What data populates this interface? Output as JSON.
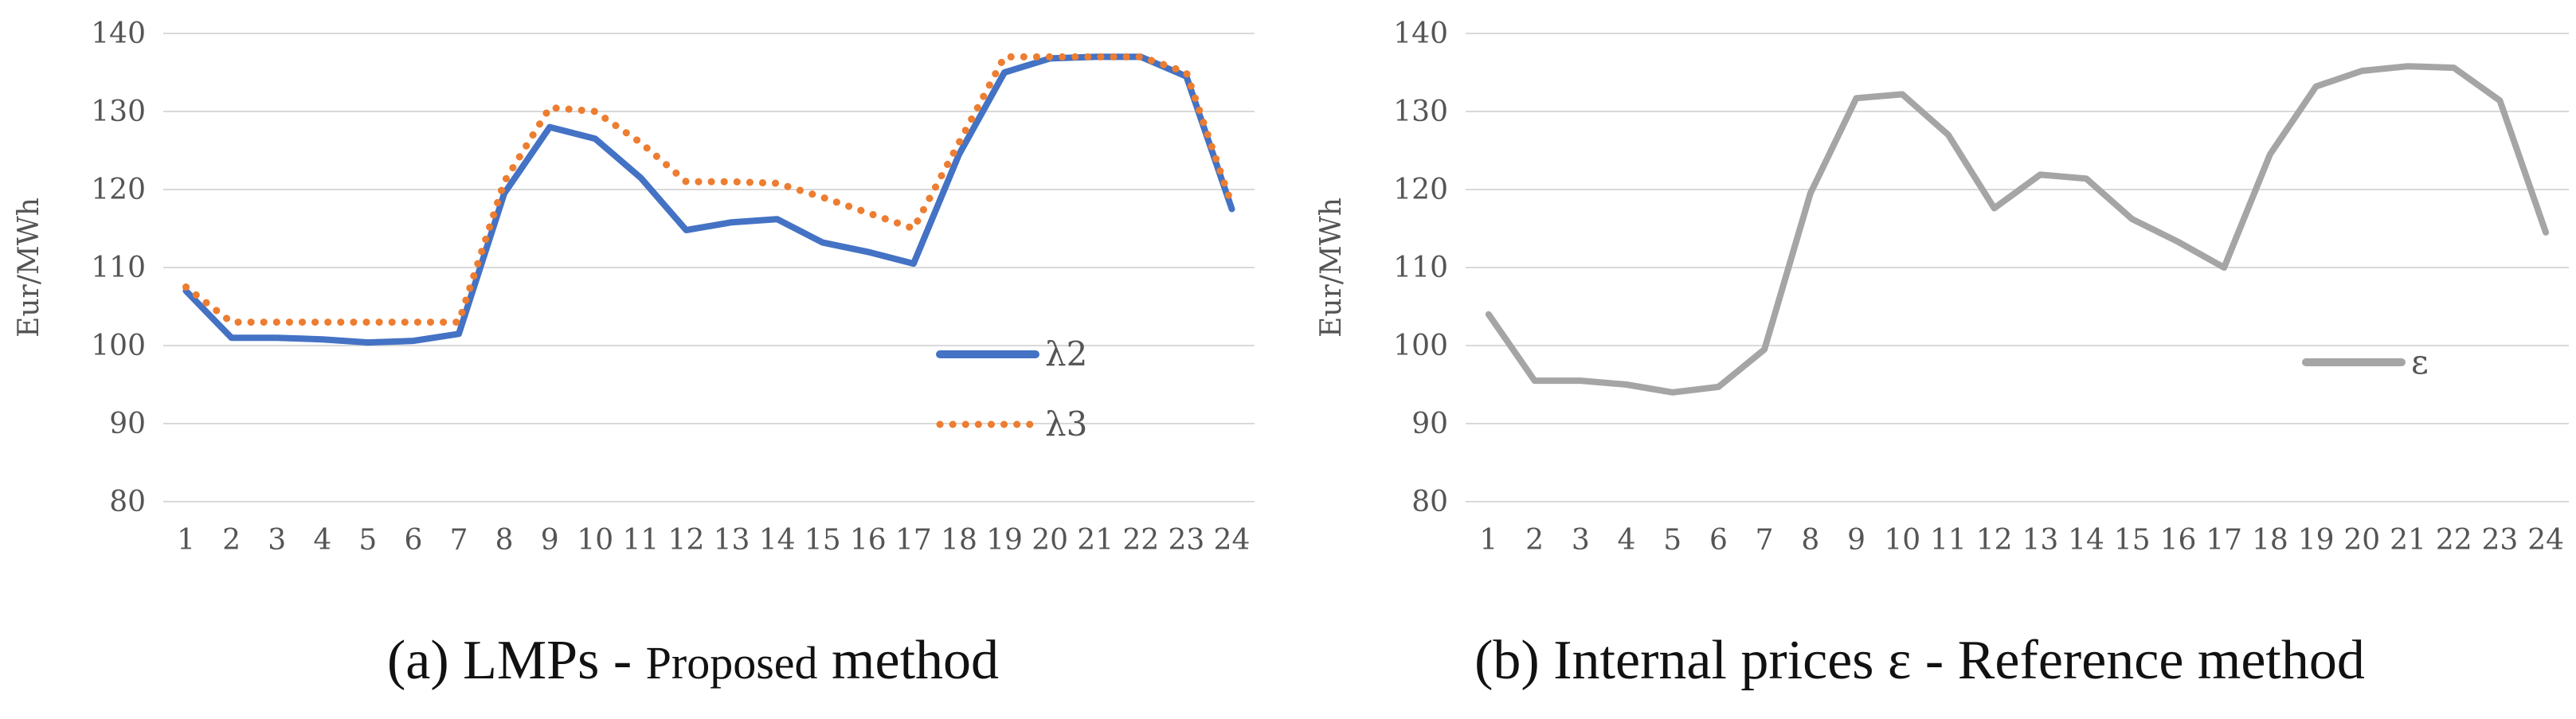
{
  "chart_data": [
    {
      "type": "line",
      "categories": [
        "1",
        "2",
        "3",
        "4",
        "5",
        "6",
        "7",
        "8",
        "9",
        "10",
        "11",
        "12",
        "13",
        "14",
        "15",
        "16",
        "17",
        "18",
        "19",
        "20",
        "21",
        "22",
        "23",
        "24"
      ],
      "ylabel": "Eur/MWh",
      "ylim": [
        80,
        140
      ],
      "yticks": [
        80,
        90,
        100,
        110,
        120,
        130,
        140
      ],
      "grid": true,
      "legend_position": "right",
      "series": [
        {
          "name": "λ2",
          "color": "#4472C4",
          "style": "solid",
          "values": [
            107,
            101,
            101,
            100.8,
            100.4,
            100.6,
            101.5,
            119.5,
            128,
            126.5,
            121.5,
            114.8,
            115.8,
            116.2,
            113.2,
            112,
            110.5,
            124.5,
            135,
            136.8,
            137,
            137,
            134.5,
            117.5
          ]
        },
        {
          "name": "λ3",
          "color": "#ED7D31",
          "style": "dotted",
          "values": [
            107.5,
            103,
            103,
            103,
            103,
            103,
            103,
            121,
            130.5,
            130,
            126,
            121,
            121,
            120.8,
            119,
            117,
            115,
            126,
            137,
            137,
            137,
            137,
            135,
            118
          ]
        }
      ],
      "caption": {
        "prefix": "(a) LMPs - ",
        "small": "Proposed",
        "suffix": " method"
      }
    },
    {
      "type": "line",
      "categories": [
        "1",
        "2",
        "3",
        "4",
        "5",
        "6",
        "7",
        "8",
        "9",
        "10",
        "11",
        "12",
        "13",
        "14",
        "15",
        "16",
        "17",
        "18",
        "19",
        "20",
        "21",
        "22",
        "23",
        "24"
      ],
      "ylabel": "Eur/MWh",
      "ylim": [
        80,
        140
      ],
      "yticks": [
        80,
        90,
        100,
        110,
        120,
        130,
        140
      ],
      "grid": true,
      "legend_position": "right",
      "series": [
        {
          "name": "ε",
          "color": "#A5A5A5",
          "style": "solid",
          "values": [
            104,
            95.5,
            95.5,
            95,
            94,
            94.7,
            99.5,
            119.5,
            131.7,
            132.2,
            127,
            117.6,
            121.9,
            121.4,
            116.2,
            113.3,
            110,
            124.5,
            133.2,
            135.2,
            135.8,
            135.6,
            131.4,
            114.5
          ]
        }
      ],
      "caption": {
        "prefix": "(b) Internal prices ε - Reference method",
        "small": "",
        "suffix": ""
      }
    }
  ]
}
